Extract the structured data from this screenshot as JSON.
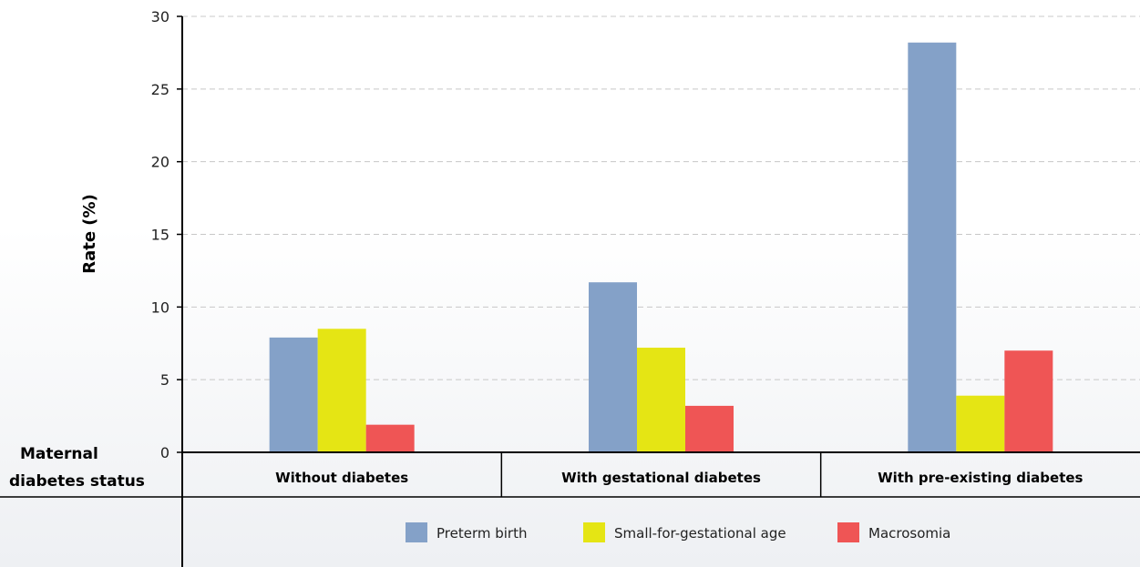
{
  "chart_data": {
    "type": "bar",
    "ylabel": "Rate (%)",
    "ylim": [
      0,
      30
    ],
    "yticks": [
      0,
      5,
      10,
      15,
      20,
      25,
      30
    ],
    "grid": true,
    "row_header": [
      "Maternal",
      "diabetes status"
    ],
    "categories": [
      "Without diabetes",
      "With gestational diabetes",
      "With pre-existing diabetes"
    ],
    "series": [
      {
        "name": "Preterm birth",
        "color": "#84a1c8",
        "values": [
          7.9,
          11.7,
          28.2
        ]
      },
      {
        "name": "Small-for-gestational age",
        "color": "#e5e514",
        "values": [
          8.5,
          7.2,
          3.9
        ]
      },
      {
        "name": "Macrosomia",
        "color": "#ef5555",
        "values": [
          1.9,
          3.2,
          7.0
        ]
      }
    ],
    "legend_position": "bottom"
  }
}
